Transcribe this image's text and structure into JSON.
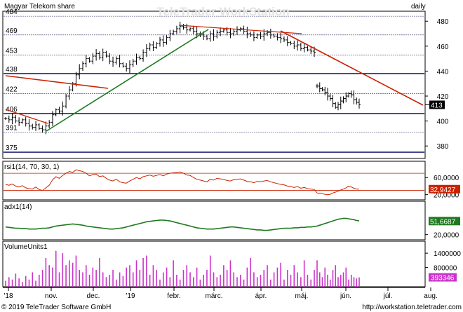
{
  "header": {
    "title": "Magyar Telekom share",
    "period": "daily",
    "watermark": "TeleTrader WorkStation"
  },
  "footer": {
    "copyright": "© 2019 TeleTrader Software GmbH",
    "url": "http://workstation.teletrader.com"
  },
  "colors": {
    "candle": "#000000",
    "support_line": "#1f7a1f",
    "resistance_line": "#cc2200",
    "horizontal_line": "#000066",
    "rsi_line": "#cc2200",
    "adx_line": "#1f7a1f",
    "volume_bar": "#cc33cc",
    "last_price_tag_bg": "#000000",
    "rsi_tag_bg": "#cc2200",
    "adx_tag_bg": "#1f7a1f",
    "volume_tag_bg": "#cc33cc"
  },
  "chart_data": [
    {
      "type": "candlestick",
      "panel": "price",
      "title": "Magyar Telekom share",
      "period": "daily",
      "x_tick_labels": [
        "'18",
        "nov.",
        "dec.",
        "'19",
        "febr.",
        "márc.",
        "ápr.",
        "máj.",
        "jún.",
        "júl.",
        "aug."
      ],
      "y_tick_labels": [
        "480",
        "460",
        "440",
        "420",
        "400",
        "380"
      ],
      "ylim": [
        370,
        488
      ],
      "horizontal_level_labels": [
        "484",
        "469",
        "453",
        "438",
        "422",
        "406",
        "391",
        "375"
      ],
      "horizontal_levels": [
        484,
        469,
        453,
        438,
        422,
        406,
        391,
        375
      ],
      "last_value_label": "413",
      "last_value": 413,
      "approx_daily_closes": [
        402,
        401,
        403,
        400,
        399,
        401,
        398,
        396,
        395,
        397,
        394,
        393,
        396,
        399,
        405,
        409,
        408,
        412,
        420,
        425,
        430,
        437,
        442,
        446,
        450,
        448,
        452,
        454,
        451,
        455,
        452,
        448,
        447,
        450,
        446,
        444,
        442,
        445,
        448,
        451,
        450,
        455,
        458,
        461,
        459,
        462,
        465,
        463,
        467,
        470,
        472,
        474,
        476,
        475,
        473,
        474,
        472,
        470,
        469,
        468,
        466,
        470,
        468,
        471,
        472,
        473,
        471,
        470,
        472,
        473,
        474,
        472,
        470,
        469,
        467,
        469,
        468,
        470,
        471,
        469,
        468,
        467,
        466,
        465,
        463,
        462,
        460,
        461,
        458,
        459,
        457,
        456,
        455,
        428,
        426,
        425,
        423,
        420,
        418,
        414,
        411,
        413,
        416,
        418,
        420,
        422,
        421,
        417,
        415,
        413
      ]
    },
    {
      "type": "line",
      "panel": "rsi",
      "label": "rsi1(14, 70, 30, 1)",
      "y_tick_labels": [
        "60,0000",
        "20,0000"
      ],
      "ylim": [
        8,
        98
      ],
      "levels": [
        70,
        30
      ],
      "last_value_label": "32,9427",
      "last_value": 32.9427,
      "values": [
        44,
        42,
        45,
        40,
        38,
        41,
        36,
        34,
        33,
        38,
        32,
        30,
        36,
        42,
        55,
        62,
        58,
        65,
        70,
        74,
        72,
        78,
        76,
        74,
        70,
        64,
        67,
        68,
        62,
        64,
        58,
        54,
        52,
        56,
        50,
        48,
        47,
        52,
        56,
        60,
        57,
        62,
        64,
        66,
        63,
        65,
        67,
        64,
        68,
        70,
        71,
        72,
        73,
        70,
        66,
        65,
        60,
        56,
        54,
        52,
        50,
        56,
        54,
        58,
        57,
        56,
        53,
        52,
        55,
        56,
        57,
        54,
        51,
        50,
        48,
        51,
        50,
        52,
        53,
        50,
        48,
        46,
        44,
        43,
        40,
        39,
        37,
        39,
        35,
        37,
        34,
        33,
        32,
        24,
        23,
        22,
        21,
        20,
        21,
        24,
        26,
        28,
        31,
        33,
        36,
        40,
        38,
        35,
        33,
        33
      ]
    },
    {
      "type": "line",
      "panel": "adx",
      "label": "adx1(14)",
      "y_tick_labels": [
        "20,0000"
      ],
      "ylim": [
        8,
        98
      ],
      "last_value_label": "51,6687",
      "last_value": 51.6687,
      "values": [
        38,
        37,
        36,
        35,
        35,
        34,
        34,
        33,
        33,
        33,
        34,
        35,
        35,
        36,
        38,
        40,
        41,
        42,
        43,
        44,
        45,
        44,
        43,
        42,
        40,
        39,
        38,
        37,
        36,
        35,
        34,
        33,
        33,
        34,
        35,
        36,
        38,
        40,
        42,
        44,
        46,
        48,
        50,
        51,
        52,
        53,
        54,
        54,
        53,
        52,
        50,
        48,
        46,
        44,
        42,
        40,
        38,
        36,
        35,
        34,
        33,
        33,
        33,
        34,
        35,
        36,
        37,
        38,
        38,
        37,
        36,
        35,
        34,
        33,
        32,
        31,
        31,
        30,
        30,
        31,
        32,
        33,
        34,
        35,
        35,
        35,
        36,
        36,
        37,
        37,
        38,
        38,
        39,
        40,
        42,
        44,
        46,
        48,
        50,
        52,
        54,
        56,
        57,
        58,
        58,
        57,
        56,
        55,
        53,
        52
      ]
    },
    {
      "type": "bar",
      "panel": "volume",
      "label": "VolumeUnits1",
      "y_tick_labels": [
        "1400000",
        "800000"
      ],
      "ylim": [
        0,
        1900000
      ],
      "last_value_label": "393346",
      "last_value": 393346,
      "values": [
        250000,
        400000,
        300000,
        550000,
        350000,
        200000,
        450000,
        300000,
        600000,
        250000,
        500000,
        700000,
        1200000,
        900000,
        800000,
        1500000,
        600000,
        1400000,
        900000,
        1100000,
        1000000,
        1300000,
        700000,
        600000,
        900000,
        500000,
        800000,
        700000,
        1200000,
        600000,
        400000,
        500000,
        700000,
        300000,
        600000,
        450000,
        800000,
        900000,
        600000,
        1100000,
        700000,
        1200000,
        1300000,
        500000,
        900000,
        700000,
        300000,
        600000,
        800000,
        400000,
        1100000,
        500000,
        300000,
        700000,
        900000,
        600000,
        400000,
        800000,
        300000,
        500000,
        700000,
        1300000,
        600000,
        400000,
        500000,
        900000,
        700000,
        1100000,
        600000,
        400000,
        500000,
        300000,
        800000,
        1200000,
        600000,
        400000,
        500000,
        700000,
        900000,
        300000,
        600000,
        800000,
        1000000,
        300000,
        700000,
        500000,
        900000,
        600000,
        400000,
        1100000,
        500000,
        300000,
        700000,
        1100000,
        600000,
        400000,
        800000,
        500000,
        300000,
        700000,
        900000,
        400000,
        500000,
        600000,
        800000,
        300000,
        500000,
        400000,
        350000,
        393346
      ]
    }
  ]
}
